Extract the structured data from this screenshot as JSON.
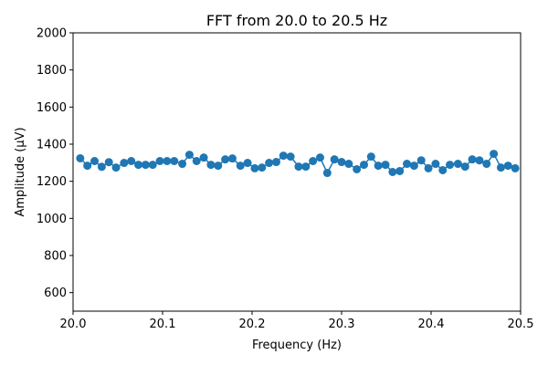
{
  "chart_data": {
    "type": "line",
    "title": "FFT from 20.0 to 20.5 Hz",
    "xlabel": "Frequency (Hz)",
    "ylabel": "Amplitude (µV)",
    "xlim": [
      20.0,
      20.5
    ],
    "ylim": [
      500,
      2000
    ],
    "xticks": [
      20.0,
      20.1,
      20.2,
      20.3,
      20.4,
      20.5
    ],
    "xtick_labels": [
      "20.0",
      "20.1",
      "20.2",
      "20.3",
      "20.4",
      "20.5"
    ],
    "yticks": [
      600,
      800,
      1000,
      1200,
      1400,
      1600,
      1800,
      2000
    ],
    "ytick_labels": [
      "600",
      "800",
      "1000",
      "1200",
      "1400",
      "1600",
      "1800",
      "2000"
    ],
    "grid": false,
    "series": [
      {
        "name": "FFT amplitude",
        "color": "#1f77b4",
        "marker": "circle",
        "x": [
          20.008,
          20.016,
          20.024,
          20.032,
          20.04,
          20.048,
          20.057,
          20.065,
          20.073,
          20.081,
          20.089,
          20.097,
          20.105,
          20.113,
          20.122,
          20.13,
          20.138,
          20.146,
          20.154,
          20.162,
          20.17,
          20.178,
          20.187,
          20.195,
          20.203,
          20.211,
          20.219,
          20.227,
          20.235,
          20.243,
          20.252,
          20.26,
          20.268,
          20.276,
          20.284,
          20.292,
          20.3,
          20.308,
          20.317,
          20.325,
          20.333,
          20.341,
          20.349,
          20.357,
          20.365,
          20.373,
          20.381,
          20.389,
          20.397,
          20.405,
          20.413,
          20.421,
          20.43,
          20.438,
          20.446,
          20.454,
          20.462,
          20.47,
          20.478,
          20.486,
          20.494
        ],
        "y": [
          1324,
          1284,
          1309,
          1278,
          1303,
          1274,
          1299,
          1309,
          1289,
          1289,
          1289,
          1309,
          1309,
          1309,
          1294,
          1343,
          1309,
          1328,
          1289,
          1284,
          1318,
          1323,
          1284,
          1299,
          1270,
          1274,
          1299,
          1304,
          1338,
          1333,
          1279,
          1279,
          1309,
          1328,
          1245,
          1318,
          1304,
          1294,
          1265,
          1289,
          1333,
          1284,
          1289,
          1250,
          1255,
          1294,
          1284,
          1313,
          1270,
          1294,
          1260,
          1289,
          1294,
          1279,
          1318,
          1313,
          1294,
          1348,
          1274,
          1284,
          1270
        ]
      }
    ]
  }
}
